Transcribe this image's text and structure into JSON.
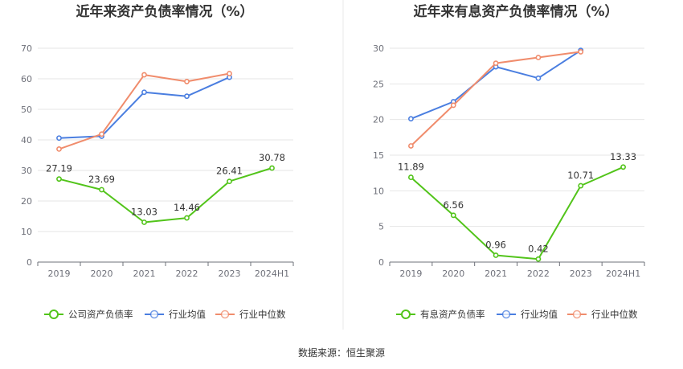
{
  "source": "数据来源：恒生聚源",
  "chart_data": [
    {
      "type": "line",
      "title": "近年来资产负债率情况（%）",
      "categories": [
        "2019",
        "2020",
        "2021",
        "2022",
        "2023",
        "2024H1"
      ],
      "ylim": [
        0,
        70
      ],
      "yticks": [
        0,
        10,
        20,
        30,
        40,
        50,
        60,
        70
      ],
      "grid": true,
      "legend_position": "bottom",
      "series": [
        {
          "name": "公司资产负债率",
          "color": "#52c41a",
          "values": [
            27.19,
            23.69,
            13.03,
            14.46,
            26.41,
            30.78
          ],
          "labels": [
            "27.19",
            "23.69",
            "13.03",
            "14.46",
            "26.41",
            "30.78"
          ]
        },
        {
          "name": "行业均值",
          "color": "#4a7ee0",
          "values": [
            40.6,
            41.2,
            55.6,
            54.3,
            60.5,
            null
          ]
        },
        {
          "name": "行业中位数",
          "color": "#f08c6c",
          "values": [
            37.0,
            41.9,
            61.3,
            59.1,
            61.7,
            null
          ]
        }
      ]
    },
    {
      "type": "line",
      "title": "近年来有息资产负债率情况（%）",
      "categories": [
        "2019",
        "2020",
        "2021",
        "2022",
        "2023",
        "2024H1"
      ],
      "ylim": [
        0,
        30
      ],
      "yticks": [
        0,
        5,
        10,
        15,
        20,
        25,
        30
      ],
      "grid": true,
      "legend_position": "bottom",
      "series": [
        {
          "name": "有息资产负债率",
          "color": "#52c41a",
          "values": [
            11.89,
            6.56,
            0.96,
            0.42,
            10.71,
            13.33
          ],
          "labels": [
            "11.89",
            "6.56",
            "0.96",
            "0.42",
            "10.71",
            "13.33"
          ]
        },
        {
          "name": "行业均值",
          "color": "#4a7ee0",
          "values": [
            20.1,
            22.5,
            27.4,
            25.8,
            29.7,
            null
          ]
        },
        {
          "name": "行业中位数",
          "color": "#f08c6c",
          "values": [
            16.3,
            22.0,
            27.9,
            28.7,
            29.5,
            null
          ]
        }
      ]
    }
  ]
}
